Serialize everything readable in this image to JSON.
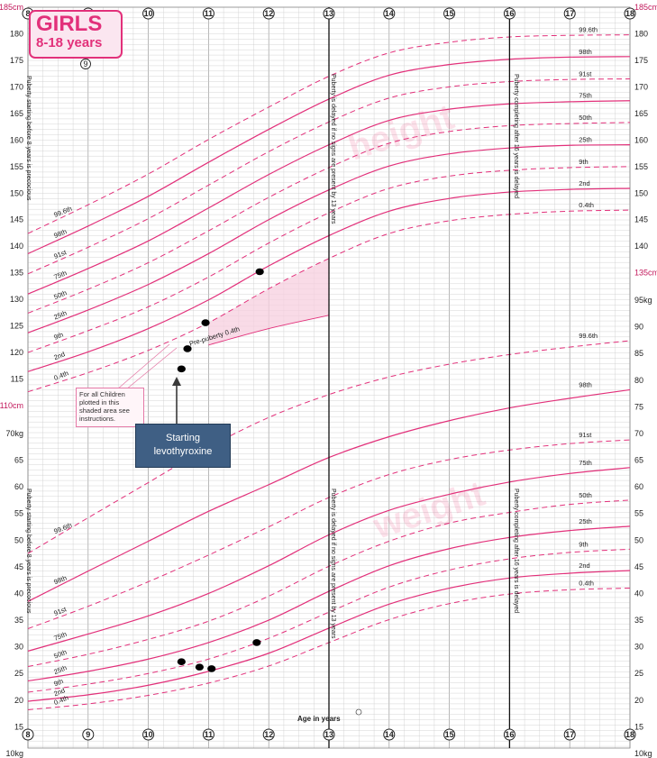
{
  "title": {
    "line1": "GIRLS",
    "line2": "8-18 years",
    "page_marker": "9"
  },
  "colors": {
    "centile": "#e2307a",
    "grid": "#cccccc",
    "band": "#f7cfdf",
    "point": "#000000",
    "box": "#3f5f84"
  },
  "x_axis": {
    "label": "Age in years",
    "ticks": [
      8,
      9,
      10,
      11,
      12,
      13,
      14,
      15,
      16,
      17,
      18
    ],
    "range": [
      8,
      18
    ]
  },
  "height_axis": {
    "range_cm": [
      110,
      185
    ],
    "left_labels": [
      "185cm",
      "180",
      "175",
      "170",
      "165",
      "160",
      "155",
      "150",
      "145",
      "140",
      "135",
      "130",
      "125",
      "120",
      "115",
      "110cm"
    ],
    "left_values": [
      185,
      180,
      175,
      170,
      165,
      160,
      155,
      150,
      145,
      140,
      135,
      130,
      125,
      120,
      115,
      110
    ],
    "right_labels": [
      "185cm",
      "180",
      "175",
      "170",
      "165",
      "160",
      "155",
      "150",
      "145",
      "140",
      "135cm"
    ],
    "right_values": [
      185,
      180,
      175,
      170,
      165,
      160,
      155,
      150,
      145,
      140,
      135
    ]
  },
  "weight_axis": {
    "range_kg": [
      10,
      95
    ],
    "left_labels": [
      "70kg",
      "65",
      "60",
      "55",
      "50",
      "45",
      "40",
      "35",
      "30",
      "25",
      "20",
      "15",
      "10kg"
    ],
    "left_values": [
      70,
      65,
      60,
      55,
      50,
      45,
      40,
      35,
      30,
      25,
      20,
      15,
      10
    ],
    "right_labels": [
      "95kg",
      "90",
      "85",
      "80",
      "75",
      "70",
      "65",
      "60",
      "55",
      "50",
      "45",
      "40",
      "35",
      "30",
      "25",
      "20",
      "15",
      "10kg"
    ],
    "right_values": [
      95,
      90,
      85,
      80,
      75,
      70,
      65,
      60,
      55,
      50,
      45,
      40,
      35,
      30,
      25,
      20,
      15,
      10
    ]
  },
  "annotations": {
    "puberty_before_8": "Puberty starting before 8 years is precocious",
    "puberty_delayed_13_height": "Puberty is delayed if no signs are present by 13 years",
    "puberty_delayed_13_weight": "Puberty is delayed if no signs are present by 13 years",
    "puberty_after_16": "Puberty completing after 16 years is delayed",
    "watermark_height": "height",
    "watermark_weight": "weight",
    "pre_puberty": "Pre-puberty 0.4th",
    "callout": "For all Children plotted in this shaded area see instructions.",
    "levothyroxine": "Starting levothyroxine"
  },
  "chart_data": [
    {
      "type": "line",
      "title": "",
      "xlabel": "Age in years",
      "ylabel": "",
      "xlim": [
        8,
        18
      ],
      "ylim": [
        110,
        185
      ],
      "x": [
        8,
        9,
        10,
        11,
        12,
        13,
        14,
        15,
        16,
        17,
        18
      ],
      "series": [
        {
          "name": "99.6th",
          "values": [
            142.4,
            147.8,
            153.6,
            160.1,
            166.2,
            172.0,
            176.4,
            178.4,
            179.4,
            179.7,
            179.8
          ]
        },
        {
          "name": "98th",
          "values": [
            138.6,
            143.8,
            149.4,
            155.8,
            162.0,
            167.7,
            172.2,
            174.2,
            175.2,
            175.6,
            175.7
          ]
        },
        {
          "name": "91st",
          "values": [
            134.8,
            139.8,
            145.2,
            151.5,
            157.8,
            163.4,
            167.9,
            170.0,
            171.0,
            171.4,
            171.5
          ]
        },
        {
          "name": "75th",
          "values": [
            131.0,
            135.8,
            141.0,
            147.2,
            153.5,
            159.1,
            163.7,
            165.8,
            166.8,
            167.2,
            167.4
          ]
        },
        {
          "name": "50th",
          "values": [
            127.4,
            131.9,
            136.9,
            142.9,
            149.2,
            154.8,
            159.4,
            161.6,
            162.7,
            163.1,
            163.3
          ]
        },
        {
          "name": "25th",
          "values": [
            123.7,
            128.0,
            132.8,
            138.6,
            145.0,
            150.6,
            155.1,
            157.4,
            158.5,
            159.0,
            159.1
          ]
        },
        {
          "name": "9th",
          "values": [
            120.0,
            124.1,
            128.6,
            134.2,
            140.6,
            146.3,
            150.9,
            153.2,
            154.3,
            154.8,
            155.0
          ]
        },
        {
          "name": "2nd",
          "values": [
            116.4,
            120.1,
            124.5,
            129.9,
            136.3,
            142.0,
            146.6,
            149.0,
            150.2,
            150.7,
            150.9
          ]
        },
        {
          "name": "0.4th",
          "values": [
            112.6,
            116.2,
            120.4,
            125.6,
            132.0,
            137.7,
            142.4,
            144.8,
            146.0,
            146.6,
            146.8
          ]
        },
        {
          "name": "Pre-puberty 0.4th",
          "values": [
            null,
            null,
            null,
            121.4,
            124.5,
            127.0,
            null,
            null,
            null,
            null,
            null
          ]
        }
      ],
      "points": [
        {
          "x": 10.55,
          "y": 116.9
        },
        {
          "x": 10.65,
          "y": 120.7
        },
        {
          "x": 10.95,
          "y": 125.6
        },
        {
          "x": 11.85,
          "y": 135.2
        }
      ]
    },
    {
      "type": "line",
      "title": "",
      "xlabel": "Age in years",
      "ylabel": "",
      "xlim": [
        8,
        18
      ],
      "ylim": [
        10,
        95
      ],
      "x": [
        8,
        9,
        10,
        11,
        12,
        13,
        14,
        15,
        16,
        17,
        18
      ],
      "series": [
        {
          "name": "99.6th",
          "values": [
            47.5,
            54.2,
            60.8,
            67.4,
            73.0,
            77.3,
            80.6,
            83.0,
            84.8,
            86.2,
            87.4
          ]
        },
        {
          "name": "98th",
          "values": [
            38.5,
            44.2,
            49.8,
            55.4,
            60.4,
            65.5,
            69.4,
            72.4,
            74.8,
            76.6,
            78.2
          ]
        },
        {
          "name": "91st",
          "values": [
            33.4,
            37.6,
            42.2,
            47.2,
            52.5,
            58.0,
            62.3,
            65.1,
            66.9,
            68.1,
            68.8
          ]
        },
        {
          "name": "75th",
          "values": [
            29.2,
            32.4,
            35.8,
            40.0,
            45.2,
            51.0,
            55.6,
            58.6,
            60.9,
            62.5,
            63.6
          ]
        },
        {
          "name": "50th",
          "values": [
            26.3,
            28.6,
            31.4,
            34.8,
            39.5,
            45.1,
            49.8,
            53.2,
            55.2,
            56.7,
            57.5
          ]
        },
        {
          "name": "25th",
          "values": [
            23.6,
            25.4,
            27.7,
            30.8,
            35.0,
            40.4,
            45.2,
            48.4,
            50.5,
            51.8,
            52.6
          ]
        },
        {
          "name": "9th",
          "values": [
            21.5,
            23.0,
            25.0,
            27.7,
            31.6,
            36.5,
            41.2,
            44.4,
            46.5,
            47.7,
            48.3
          ]
        },
        {
          "name": "2nd",
          "values": [
            19.8,
            21.0,
            22.8,
            25.4,
            28.8,
            33.5,
            38.0,
            41.0,
            42.9,
            43.8,
            44.3
          ]
        },
        {
          "name": "0.4th",
          "values": [
            18.2,
            19.3,
            20.9,
            23.2,
            26.4,
            30.8,
            35.1,
            38.1,
            39.9,
            40.7,
            41.0
          ]
        }
      ],
      "points": [
        {
          "x": 10.55,
          "y": 27.2
        },
        {
          "x": 10.85,
          "y": 26.2
        },
        {
          "x": 11.05,
          "y": 25.9
        },
        {
          "x": 11.8,
          "y": 30.8
        }
      ]
    }
  ]
}
